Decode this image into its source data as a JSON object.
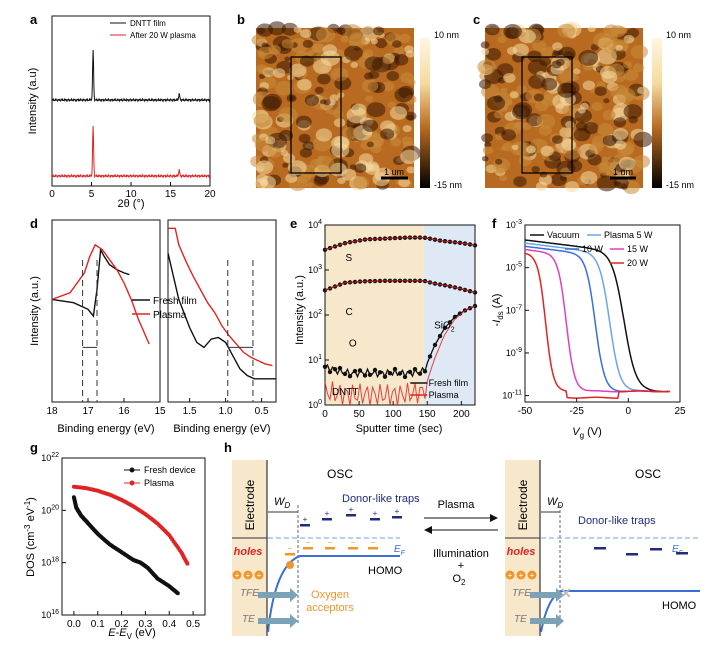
{
  "panels": {
    "a": "a",
    "b": "b",
    "c": "c",
    "d": "d",
    "e": "e",
    "f": "f",
    "g": "g",
    "h": "h"
  },
  "colors": {
    "black": "#111111",
    "red": "#e02424",
    "blue": "#3a6fd8",
    "orange": "#f0962a",
    "navy": "#1f2d7a",
    "light_blue": "#6aa5e8",
    "purple": "#8a3ad8",
    "magenta": "#e040c0",
    "tan": "#f7e8cc",
    "pale_blue": "#dfe9f5",
    "afm_low": "#3a1500",
    "afm_mid": "#b86a20",
    "afm_high": "#f6dba0"
  },
  "chart_data": [
    {
      "panel": "a",
      "type": "line",
      "title": "",
      "xlabel": "2θ (°)",
      "ylabel": "Intensity (a.u)",
      "xlim": [
        0,
        20
      ],
      "xticks": [
        "0",
        "5",
        "10",
        "15",
        "20"
      ],
      "series": [
        {
          "name": "DNTT film",
          "color": "black",
          "peaks": [
            {
              "x": 5.2,
              "h": 0.95
            },
            {
              "x": 16.1,
              "h": 0.12
            }
          ]
        },
        {
          "name": "After 20 W plasma",
          "color": "red",
          "peaks": [
            {
              "x": 5.2,
              "h": 0.95
            },
            {
              "x": 16.1,
              "h": 0.12
            }
          ]
        }
      ]
    },
    {
      "panel": "b",
      "type": "heatmap",
      "colorbar": {
        "max": "10 nm",
        "min": "-15 nm"
      },
      "scale_bar": "1 um"
    },
    {
      "panel": "c",
      "type": "heatmap",
      "colorbar": {
        "max": "10 nm",
        "min": "-15 nm"
      },
      "scale_bar": "1 um"
    },
    {
      "panel": "d",
      "type": "line",
      "ylabel": "Intensity (a.u.)",
      "left": {
        "xlabel": "Binding energy (eV)",
        "xlim": [
          18,
          15
        ],
        "xticks": [
          "18",
          "17",
          "16",
          "15"
        ],
        "series": [
          {
            "name": "Fresh film",
            "color": "black",
            "x": [
              18,
              17.4,
              17.0,
              16.85,
              16.75,
              16.65,
              16.55,
              16.4,
              16.2,
              16.0,
              15.85
            ],
            "y": [
              0.62,
              0.6,
              0.56,
              0.52,
              0.68,
              0.92,
              0.88,
              0.83,
              0.8,
              0.78,
              0.77
            ]
          },
          {
            "name": "Plasma",
            "color": "red",
            "x": [
              18,
              17.5,
              17.1,
              16.95,
              16.8,
              16.6,
              16.4,
              16.2,
              16.0,
              15.8,
              15.6,
              15.3
            ],
            "y": [
              0.62,
              0.66,
              0.78,
              0.88,
              0.95,
              0.92,
              0.86,
              0.8,
              0.72,
              0.62,
              0.5,
              0.35
            ]
          }
        ],
        "markers": [
          17.15,
          16.75
        ]
      },
      "right": {
        "xlabel": "Binding energy (eV)",
        "xlim": [
          1.8,
          0.3
        ],
        "xticks": [
          "1.5",
          "1.0",
          "0.5"
        ],
        "series": [
          {
            "name": "Fresh film",
            "color": "black",
            "x": [
              1.8,
              1.65,
              1.5,
              1.4,
              1.3,
              1.2,
              1.1,
              1.0,
              0.9,
              0.8,
              0.7,
              0.6,
              0.5,
              0.4,
              0.3
            ],
            "y": [
              0.9,
              0.62,
              0.45,
              0.36,
              0.33,
              0.38,
              0.39,
              0.36,
              0.28,
              0.2,
              0.16,
              0.14,
              0.14,
              0.14,
              0.14
            ]
          },
          {
            "name": "Plasma",
            "color": "red",
            "x": [
              1.8,
              1.7,
              1.65,
              1.55,
              1.45,
              1.35,
              1.25,
              1.15,
              1.05,
              0.95,
              0.85,
              0.75,
              0.65,
              0.55,
              0.45,
              0.35
            ],
            "y": [
              1.05,
              1.05,
              0.95,
              0.85,
              0.76,
              0.68,
              0.6,
              0.54,
              0.46,
              0.4,
              0.35,
              0.3,
              0.27,
              0.25,
              0.23,
              0.22
            ]
          }
        ],
        "markers": [
          0.97,
          0.62
        ]
      }
    },
    {
      "panel": "e",
      "type": "scatter",
      "xlabel": "Sputter time (sec)",
      "ylabel": "Intensity (a.u.)",
      "xlim": [
        0,
        220
      ],
      "ylim_log10": [
        0,
        4
      ],
      "xticks": [
        "0",
        "50",
        "100",
        "150",
        "200"
      ],
      "yticks": [
        "10^0",
        "10^1",
        "10^2",
        "10^3",
        "10^4"
      ],
      "regions": [
        {
          "label": "DNTT",
          "x": [
            0,
            145
          ]
        },
        {
          "label": "SiO2",
          "x": [
            145,
            220
          ]
        }
      ],
      "annotations": [
        "S",
        "C",
        "O"
      ],
      "series": [
        {
          "name": "Fresh film",
          "color": "black",
          "S": [
            [
              0,
              3.45
            ],
            [
              30,
              3.6
            ],
            [
              60,
              3.68
            ],
            [
              90,
              3.7
            ],
            [
              120,
              3.72
            ],
            [
              145,
              3.72
            ],
            [
              170,
              3.65
            ],
            [
              200,
              3.6
            ],
            [
              220,
              3.55
            ]
          ],
          "C": [
            [
              0,
              2.55
            ],
            [
              30,
              2.72
            ],
            [
              60,
              2.75
            ],
            [
              90,
              2.76
            ],
            [
              120,
              2.76
            ],
            [
              145,
              2.76
            ],
            [
              160,
              2.7
            ],
            [
              180,
              2.65
            ],
            [
              200,
              2.58
            ],
            [
              220,
              2.5
            ]
          ],
          "O": [
            [
              0,
              0.85
            ],
            [
              20,
              0.75
            ],
            [
              40,
              0.7
            ],
            [
              60,
              0.72
            ],
            [
              80,
              0.7
            ],
            [
              100,
              0.72
            ],
            [
              120,
              0.7
            ],
            [
              145,
              0.75
            ],
            [
              160,
              1.3
            ],
            [
              175,
              1.7
            ],
            [
              190,
              1.95
            ],
            [
              205,
              2.1
            ],
            [
              220,
              2.2
            ]
          ]
        },
        {
          "name": "Plasma",
          "color": "red",
          "S": [
            [
              0,
              3.45
            ],
            [
              30,
              3.6
            ],
            [
              60,
              3.68
            ],
            [
              90,
              3.7
            ],
            [
              120,
              3.72
            ],
            [
              145,
              3.72
            ],
            [
              170,
              3.65
            ],
            [
              200,
              3.6
            ],
            [
              220,
              3.55
            ]
          ],
          "C": [
            [
              0,
              2.55
            ],
            [
              30,
              2.72
            ],
            [
              60,
              2.75
            ],
            [
              90,
              2.76
            ],
            [
              120,
              2.76
            ],
            [
              145,
              2.76
            ],
            [
              160,
              2.7
            ],
            [
              180,
              2.65
            ],
            [
              200,
              2.58
            ],
            [
              220,
              2.5
            ]
          ],
          "O": [
            [
              0,
              0.3
            ],
            [
              20,
              0.25
            ],
            [
              40,
              0.22
            ],
            [
              60,
              0.24
            ],
            [
              80,
              0.22
            ],
            [
              100,
              0.23
            ],
            [
              120,
              0.24
            ],
            [
              145,
              0.3
            ],
            [
              160,
              1.0
            ],
            [
              175,
              1.55
            ],
            [
              190,
              1.9
            ],
            [
              205,
              2.1
            ],
            [
              220,
              2.2
            ]
          ]
        }
      ]
    },
    {
      "panel": "f",
      "type": "line",
      "xlabel": "V_g (V)",
      "ylabel": "-I_ds (A)",
      "xlim": [
        -50,
        25
      ],
      "ylim_log10": [
        -11.3,
        -3
      ],
      "xticks": [
        "-50",
        "-25",
        "0",
        "25"
      ],
      "yticks": [
        "10^-3",
        "10^-5",
        "10^-7",
        "10^-9",
        "10^-11"
      ],
      "series": [
        {
          "name": "Vacuum",
          "color": "black",
          "vth": -2
        },
        {
          "name": "Plasma 5 W",
          "color": "light_blue",
          "vth": -9
        },
        {
          "name": "10 W",
          "color": "blue",
          "vth": -16
        },
        {
          "name": "15 W",
          "color": "magenta",
          "vth": -30
        },
        {
          "name": "20 W",
          "color": "red",
          "vth": -40
        }
      ]
    },
    {
      "panel": "g",
      "type": "scatter",
      "xlabel": "E-E_V (eV)",
      "ylabel": "DOS (cm^-3 eV^-1)",
      "xlim": [
        -0.05,
        0.55
      ],
      "ylim_log10": [
        16,
        22
      ],
      "xticks": [
        "0.0",
        "0.1",
        "0.2",
        "0.3",
        "0.4",
        "0.5"
      ],
      "yticks": [
        "10^16",
        "10^18",
        "10^20",
        "10^22"
      ],
      "series": [
        {
          "name": "Fresh device",
          "color": "black",
          "x": [
            0,
            0.01,
            0.03,
            0.06,
            0.1,
            0.15,
            0.2,
            0.25,
            0.28,
            0.31,
            0.35,
            0.4,
            0.44
          ],
          "y": [
            20.5,
            20.1,
            19.8,
            19.5,
            19.1,
            18.7,
            18.4,
            18.1,
            18.0,
            17.8,
            17.4,
            17.1,
            16.8
          ]
        },
        {
          "name": "Plasma",
          "color": "red",
          "x": [
            0,
            0.05,
            0.1,
            0.15,
            0.2,
            0.25,
            0.3,
            0.35,
            0.4,
            0.45,
            0.48
          ],
          "y": [
            20.9,
            20.85,
            20.75,
            20.6,
            20.4,
            20.15,
            19.85,
            19.5,
            19.05,
            18.4,
            17.9
          ]
        }
      ]
    }
  ],
  "diagram": {
    "left": {
      "electrode": "Electrode",
      "osc": "OSC",
      "wd": "W",
      "wd_sub": "D",
      "traps": "Donor-like traps",
      "ef": "E",
      "ef_sub": "F",
      "holes": "holes",
      "homo": "HOMO",
      "tfe": "TFE",
      "te": "TE",
      "oxygen": "Oxygen",
      "acceptors": "acceptors"
    },
    "middle": {
      "plasma": "Plasma",
      "illumination": "Illumination",
      "plus": "+",
      "o2": "O",
      "o2_sub": "2"
    },
    "right": {
      "electrode": "Electrode",
      "osc": "OSC",
      "wd": "W",
      "wd_sub": "D",
      "traps": "Donor-like traps",
      "ef": "E",
      "ef_sub": "F",
      "holes": "holes",
      "homo": "HOMO",
      "tfe": "TFE",
      "te": "TE"
    }
  }
}
